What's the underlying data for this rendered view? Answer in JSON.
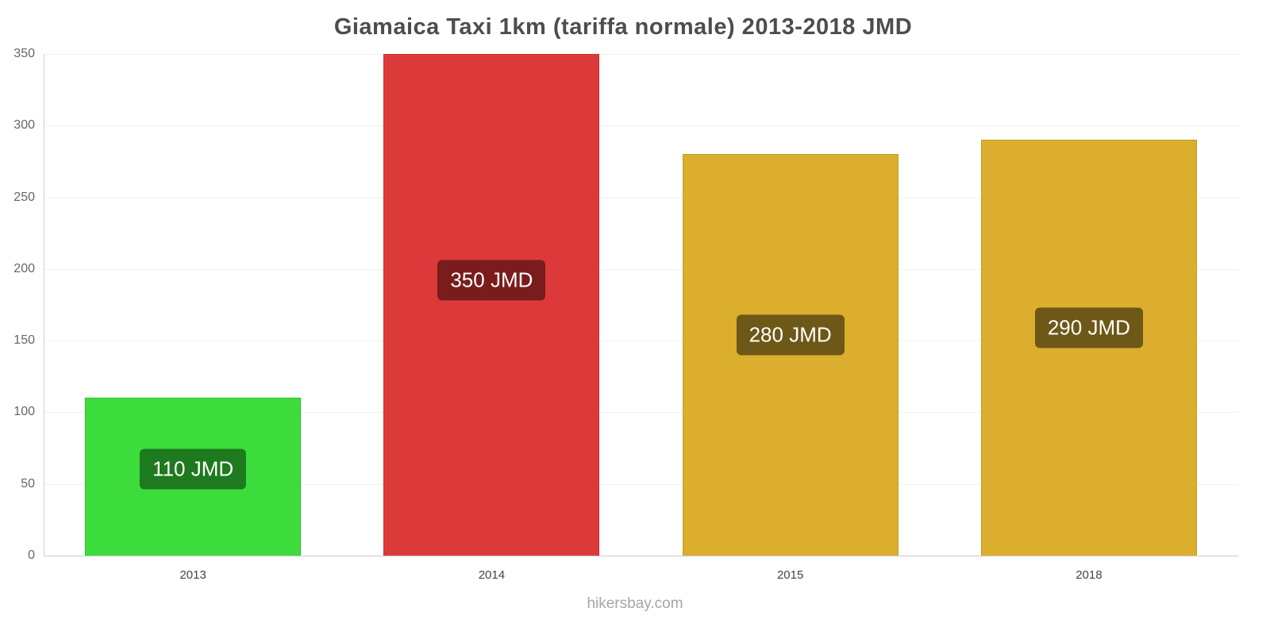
{
  "chart_data": {
    "type": "bar",
    "title": "Giamaica Taxi 1km (tariffa normale) 2013-2018 JMD",
    "categories": [
      "2013",
      "2014",
      "2015",
      "2018"
    ],
    "values": [
      110,
      350,
      280,
      290
    ],
    "value_labels": [
      "110 JMD",
      "350 JMD",
      "280 JMD",
      "290 JMD"
    ],
    "bar_colors": [
      "#3cdc3c",
      "#dc3a3a",
      "#dcae2e",
      "#dcae2e"
    ],
    "bar_border_colors": [
      "#2fbf2f",
      "#c52f2f",
      "#c79c26",
      "#c79c26"
    ],
    "label_bg_colors": [
      "#1e7a1e",
      "#7a1c1c",
      "#6e5817",
      "#6e5817"
    ],
    "ylim": [
      0,
      350
    ],
    "yticks": [
      0,
      50,
      100,
      150,
      200,
      250,
      300,
      350
    ],
    "grid": true,
    "legend": false,
    "xlabel": "",
    "ylabel": ""
  },
  "footer": {
    "text": "hikersbay.com"
  },
  "colors": {
    "title": "#4d4d4d",
    "grid": "#f0f0f0",
    "axis": "#cccccc",
    "tick_label": "#666666",
    "footer": "#a6a6a6",
    "background": "#ffffff"
  }
}
